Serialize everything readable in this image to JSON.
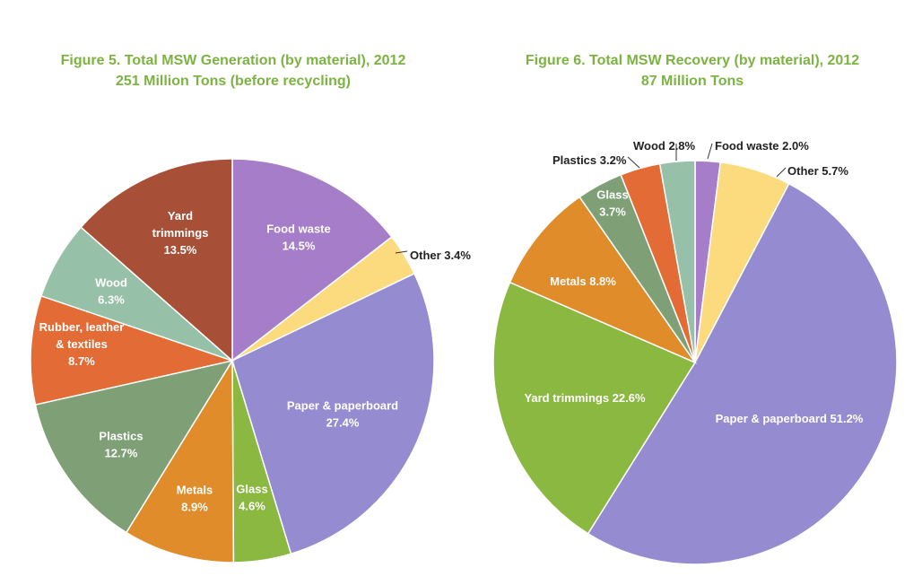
{
  "chart_data": [
    {
      "type": "pie",
      "title": "Figure 5. Total MSW Generation (by material), 2012",
      "subtitle": "251 Million Tons (before recycling)",
      "slices": [
        {
          "label": "Food waste",
          "value": 14.5,
          "color": "#a67dc9",
          "text": [
            "Food waste",
            "14.5%"
          ]
        },
        {
          "label": "Other",
          "value": 3.4,
          "color": "#fcdb7e",
          "text": [
            "Other 3.4%"
          ]
        },
        {
          "label": "Paper & paperboard",
          "value": 27.4,
          "color": "#958bd0",
          "text": [
            "Paper & paperboard",
            "27.4%"
          ]
        },
        {
          "label": "Glass",
          "value": 4.6,
          "color": "#8ab840",
          "text": [
            "Glass",
            "4.6%"
          ]
        },
        {
          "label": "Metals",
          "value": 8.9,
          "color": "#e08c2a",
          "text": [
            "Metals",
            "8.9%"
          ]
        },
        {
          "label": "Plastics",
          "value": 12.7,
          "color": "#7fa076",
          "text": [
            "Plastics",
            "12.7%"
          ]
        },
        {
          "label": "Rubber, leather & textiles",
          "value": 8.7,
          "color": "#e36c36",
          "text": [
            "Rubber, leather",
            "& textiles",
            "8.7%"
          ]
        },
        {
          "label": "Wood",
          "value": 6.3,
          "color": "#97c0a8",
          "text": [
            "Wood",
            "6.3%"
          ]
        },
        {
          "label": "Yard trimmings",
          "value": 13.5,
          "color": "#a84f37",
          "text": [
            "Yard",
            "trimmings",
            "13.5%"
          ]
        }
      ]
    },
    {
      "type": "pie",
      "title": "Figure 6. Total MSW Recovery (by material), 2012",
      "subtitle": "87 Million Tons",
      "slices": [
        {
          "label": "Food waste",
          "value": 2.0,
          "color": "#a67dc9",
          "text": [
            "Food waste 2.0%"
          ]
        },
        {
          "label": "Other",
          "value": 5.7,
          "color": "#fcdb7e",
          "text": [
            "Other 5.7%"
          ]
        },
        {
          "label": "Paper & paperboard",
          "value": 51.2,
          "color": "#958bd0",
          "text": [
            "Paper & paperboard 51.2%"
          ]
        },
        {
          "label": "Yard trimmings",
          "value": 22.6,
          "color": "#8ab840",
          "text": [
            "Yard trimmings 22.6%"
          ]
        },
        {
          "label": "Metals",
          "value": 8.8,
          "color": "#e08c2a",
          "text": [
            "Metals 8.8%"
          ]
        },
        {
          "label": "Glass",
          "value": 3.7,
          "color": "#7fa076",
          "text": [
            "Glass",
            "3.7%"
          ]
        },
        {
          "label": "Plastics",
          "value": 3.2,
          "color": "#e36c36",
          "text": [
            "Plastics 3.2%"
          ]
        },
        {
          "label": "Wood",
          "value": 2.8,
          "color": "#97c0a8",
          "text": [
            "Wood 2.8%"
          ]
        }
      ]
    }
  ]
}
